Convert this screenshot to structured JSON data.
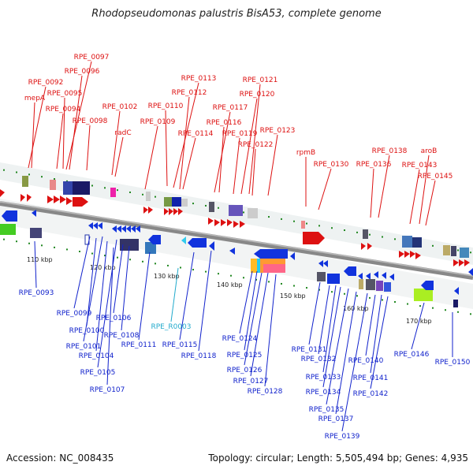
{
  "header": {
    "title": "Rhodopseudomonas palustris BisA53, complete genome"
  },
  "footer": {
    "accession": "Accession: NC_008435",
    "summary": "Topology: circular; Length: 5,505,494 bp; Genes: 4,935"
  },
  "ruler": {
    "ticks": [
      "110 kbp",
      "120 kbp",
      "130 kbp",
      "140 kbp",
      "150 kbp",
      "160 kbp",
      "170 kbp"
    ]
  },
  "colors": {
    "forward": "#dd1111",
    "reverse": "#1122cc",
    "rna": "#22aacc",
    "backbone": "#888888",
    "tick": "#228822"
  },
  "labels_forward": [
    "RPE_0097",
    "RPE_0096",
    "RPE_0092",
    "mepA",
    "RPE_0095",
    "RPE_0094",
    "RPE_0098",
    "RPE_0102",
    "radC",
    "RPE_0109",
    "RPE_0110",
    "RPE_0113",
    "RPE_0112",
    "RPE_0114",
    "RPE_0117",
    "RPE_0116",
    "RPE_0121",
    "RPE_0120",
    "RPE_0119",
    "RPE_0122",
    "RPE_0123",
    "rpmB",
    "RPE_0130",
    "RPE_0138",
    "RPE_0136",
    "aroB",
    "RPE_0143",
    "RPE_0145"
  ],
  "labels_reverse": [
    "RPE_0093",
    "RPE_0099",
    "RPE_0100",
    "RPE_0101",
    "RPE_0104",
    "RPE_0105",
    "RPE_0106",
    "RPE_0108",
    "RPE_0107",
    "RPE_0111",
    "RPE_R0003",
    "RPE_0115",
    "RPE_0118",
    "RPE_0124",
    "RPE_0125",
    "RPE_0126",
    "RPE_0127",
    "RPE_0128",
    "RPE_0131",
    "RPE_0132",
    "RPE_0133",
    "RPE_0134",
    "RPE_0135",
    "RPE_0137",
    "RPE_0139",
    "RPE_0140",
    "RPE_0141",
    "RPE_0142",
    "RPE_0146",
    "RPE_0150"
  ]
}
